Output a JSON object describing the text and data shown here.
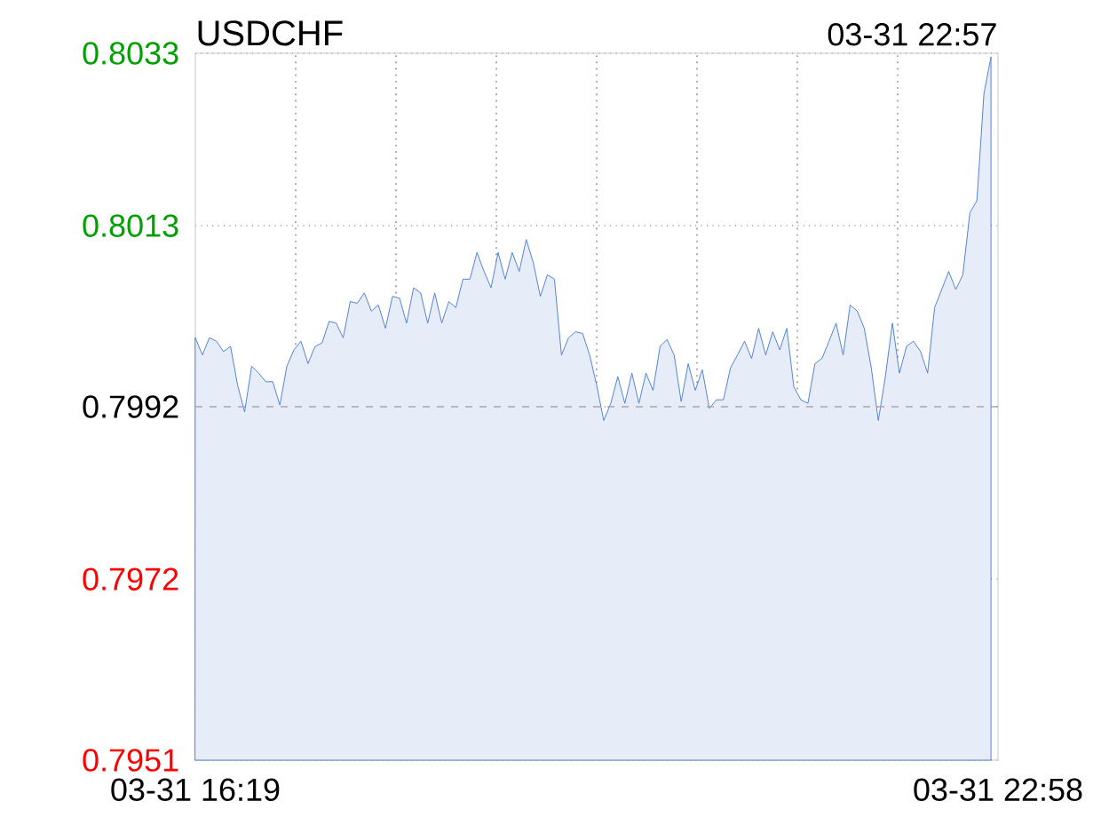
{
  "chart_data": {
    "type": "area",
    "title": "USDCHF",
    "subtitle": "03-31 22:57",
    "color": "#4a7bd0",
    "categories": [
      "03-31 16:19",
      null,
      null,
      null,
      null,
      null,
      null,
      null,
      null,
      null,
      null,
      null,
      null,
      null,
      null,
      null,
      null,
      null,
      null,
      null,
      null,
      null,
      null,
      null,
      null,
      null,
      null,
      null,
      null,
      null,
      null,
      null,
      null,
      null,
      null,
      null,
      null,
      null,
      null,
      null,
      null,
      null,
      null,
      null,
      null,
      null,
      null,
      null,
      null,
      null,
      null,
      null,
      null,
      null,
      null,
      null,
      null,
      null,
      null,
      null,
      null,
      null,
      null,
      null,
      null,
      null,
      null,
      null,
      null,
      null,
      null,
      null,
      null,
      null,
      null,
      null,
      null,
      null,
      null,
      null,
      null,
      null,
      null,
      null,
      null,
      null,
      null,
      null,
      null,
      null,
      null,
      null,
      null,
      null,
      null,
      null,
      null,
      null,
      null,
      null,
      null,
      null,
      null,
      null,
      null,
      null,
      null,
      null,
      null,
      null,
      null,
      null,
      null,
      null,
      "03-31 22:58"
    ],
    "values": [
      0.8,
      0.7998,
      0.8,
      0.79996,
      0.79984,
      0.7999,
      0.79945,
      0.79914,
      0.79967,
      0.79959,
      0.79949,
      0.79949,
      0.79922,
      0.79967,
      0.79986,
      0.79996,
      0.7997,
      0.7999,
      0.79994,
      0.80019,
      0.80017,
      0.8,
      0.80042,
      0.8004,
      0.80052,
      0.80031,
      0.80038,
      0.80011,
      0.80048,
      0.80046,
      0.80017,
      0.80058,
      0.80052,
      0.80017,
      0.80052,
      0.80017,
      0.80042,
      0.80035,
      0.80068,
      0.80068,
      0.80099,
      0.80077,
      0.80058,
      0.80099,
      0.80068,
      0.80099,
      0.80077,
      0.80114,
      0.80087,
      0.80048,
      0.80073,
      0.80068,
      0.7998,
      0.8,
      0.80007,
      0.80005,
      0.7998,
      0.79945,
      0.79904,
      0.79924,
      0.79955,
      0.79924,
      0.79959,
      0.79924,
      0.79959,
      0.79939,
      0.7999,
      0.79998,
      0.7998,
      0.79926,
      0.7997,
      0.79939,
      0.79963,
      0.79918,
      0.79928,
      0.79928,
      0.79965,
      0.7998,
      0.79996,
      0.79976,
      0.80011,
      0.7998,
      0.80007,
      0.79986,
      0.80011,
      0.79943,
      0.79928,
      0.79924,
      0.7997,
      0.79976,
      0.79996,
      0.80017,
      0.7998,
      0.80038,
      0.80031,
      0.80011,
      0.79965,
      0.79904,
      0.79955,
      0.80017,
      0.79959,
      0.7999,
      0.79996,
      0.79984,
      0.79959,
      0.80035,
      0.80056,
      0.80077,
      0.80056,
      0.80073,
      0.80145,
      0.80159,
      0.80283,
      0.80326,
      null
    ],
    "ylim": [
      0.7951,
      0.8033
    ],
    "yticks": [
      0.7951,
      0.7972,
      0.7992,
      0.8013,
      0.8033
    ],
    "grid": true,
    "ref_lines": [
      {
        "axis": "y",
        "value": 0.7992,
        "line_style": "dashed"
      }
    ]
  }
}
